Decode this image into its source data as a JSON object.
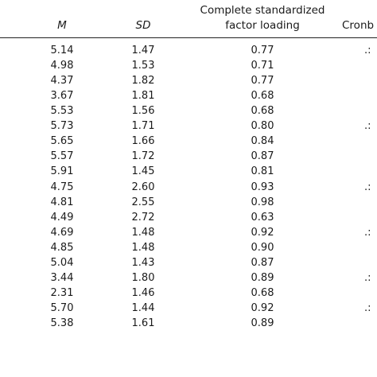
{
  "table": {
    "headers": {
      "m": "M",
      "sd": "SD",
      "factor_loading_line1": "Complete standardized",
      "factor_loading_line2": "factor loading",
      "cronbach": "Cronb"
    },
    "rows": [
      {
        "m": "5.14",
        "sd": "1.47",
        "fl": "0.77",
        "cr": ".:"
      },
      {
        "m": "4.98",
        "sd": "1.53",
        "fl": "0.71",
        "cr": ""
      },
      {
        "m": "4.37",
        "sd": "1.82",
        "fl": "0.77",
        "cr": ""
      },
      {
        "m": "3.67",
        "sd": "1.81",
        "fl": "0.68",
        "cr": ""
      },
      {
        "m": "5.53",
        "sd": "1.56",
        "fl": "0.68",
        "cr": ""
      },
      {
        "m": "5.73",
        "sd": "1.71",
        "fl": "0.80",
        "cr": ".:"
      },
      {
        "m": "5.65",
        "sd": "1.66",
        "fl": "0.84",
        "cr": ""
      },
      {
        "m": "5.57",
        "sd": "1.72",
        "fl": "0.87",
        "cr": ""
      },
      {
        "m": "5.91",
        "sd": "1.45",
        "fl": "0.81",
        "cr": ""
      },
      {
        "m": "4.75",
        "sd": "2.60",
        "fl": "0.93",
        "cr": ".:"
      },
      {
        "m": "4.81",
        "sd": "2.55",
        "fl": "0.98",
        "cr": ""
      },
      {
        "m": "4.49",
        "sd": "2.72",
        "fl": "0.63",
        "cr": ""
      },
      {
        "m": "4.69",
        "sd": "1.48",
        "fl": "0.92",
        "cr": ".:"
      },
      {
        "m": "4.85",
        "sd": "1.48",
        "fl": "0.90",
        "cr": ""
      },
      {
        "m": "5.04",
        "sd": "1.43",
        "fl": "0.87",
        "cr": ""
      },
      {
        "m": "3.44",
        "sd": "1.80",
        "fl": "0.89",
        "cr": ".:"
      },
      {
        "m": "2.31",
        "sd": "1.46",
        "fl": "0.68",
        "cr": ""
      },
      {
        "m": "5.70",
        "sd": "1.44",
        "fl": "0.92",
        "cr": ".:"
      },
      {
        "m": "5.38",
        "sd": "1.61",
        "fl": "0.89",
        "cr": ""
      }
    ]
  }
}
